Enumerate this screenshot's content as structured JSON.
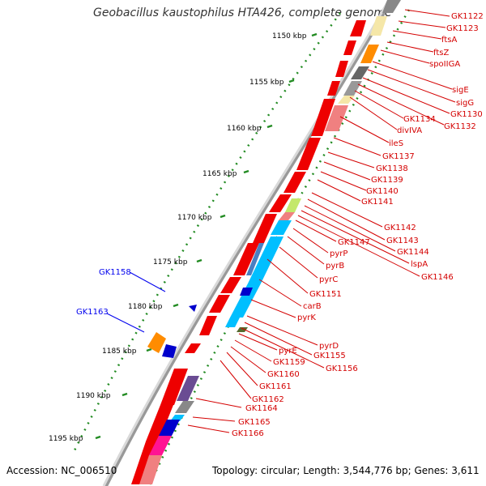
{
  "title": "Geobacillus kaustophilus HTA426, complete genome",
  "accession": "Accession: NC_006510",
  "topology": "Topology: circular; Length: 3,544,776 bp; Genes: 3,611",
  "colors": {
    "red_gene": "#ee0000",
    "blue_gene": "#0000cc",
    "label_red": "#d40000",
    "label_blue": "#0000ee",
    "tick_green": "#228b22"
  },
  "kbp_labels": [
    "1150 kbp",
    "1155 kbp",
    "1160 kbp",
    "1165 kbp",
    "1170 kbp",
    "1175 kbp",
    "1180 kbp",
    "1185 kbp",
    "1190 kbp",
    "1195 kbp"
  ],
  "right_labels": [
    "GK1122",
    "GK1123",
    "ftsA",
    "ftsZ",
    "spoIIGA",
    "sigE",
    "sigG",
    "GK1130",
    "GK1132",
    "GK1134",
    "divIVA",
    "ileS",
    "GK1137",
    "GK1138",
    "GK1139",
    "GK1140",
    "GK1141",
    "GK1142",
    "GK1143",
    "GK1144",
    "lspA",
    "GK1146",
    "GK1147",
    "pyrP",
    "pyrB",
    "pyrC",
    "GK1151",
    "carB",
    "pyrK",
    "pyrD",
    "GK1155",
    "GK1156",
    "pyrE",
    "GK1159",
    "GK1160",
    "GK1161",
    "GK1162",
    "GK1164",
    "GK1165",
    "GK1166"
  ],
  "left_labels": [
    "GK1158",
    "GK1163"
  ]
}
